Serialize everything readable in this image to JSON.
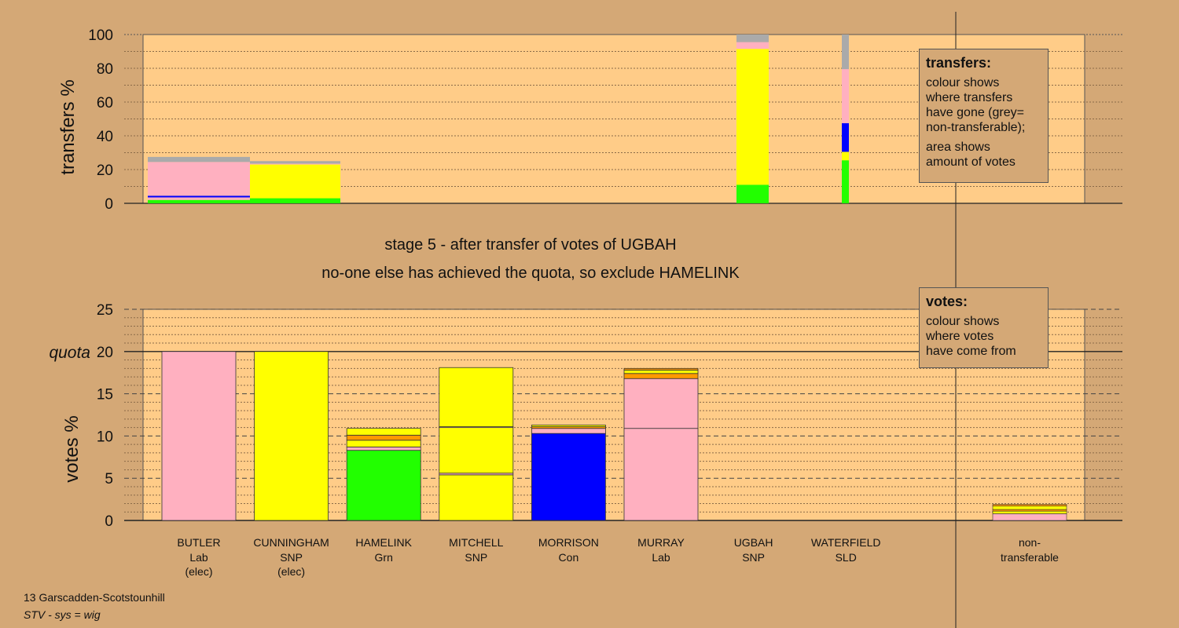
{
  "chart_data": [
    {
      "type": "bar",
      "stacked": true,
      "ylabel": "transfers %",
      "ylim": [
        0,
        100
      ],
      "yticks": [
        0,
        20,
        40,
        60,
        80,
        100
      ],
      "legend_title": "transfers:",
      "legend_lines1": [
        "colour shows",
        "where transfers",
        "have gone (grey=",
        "non-transferable);"
      ],
      "legend_lines2": [
        "area shows",
        "amount of votes"
      ],
      "legend_position": "right",
      "bars": [
        {
          "id": "butler",
          "segments": [
            {
              "color": "#22ff00",
              "value": 2
            },
            {
              "color": "#ffb0c0",
              "value": 1.5
            },
            {
              "color": "#0000ff",
              "value": 1
            },
            {
              "color": "#ffb0c0",
              "value": 20
            },
            {
              "color": "#aaaaaa",
              "value": 3
            }
          ]
        },
        {
          "id": "cunningham",
          "segments": [
            {
              "color": "#22ff00",
              "value": 3
            },
            {
              "color": "#ffff00",
              "value": 20
            },
            {
              "color": "#ffb0c0",
              "value": 0.5
            },
            {
              "color": "#aaaaaa",
              "value": 1.5
            }
          ]
        },
        {
          "id": "ugbah",
          "segments": [
            {
              "color": "#22ff00",
              "value": 11
            },
            {
              "color": "#ffff00",
              "value": 80.5
            },
            {
              "color": "#ffb0c0",
              "value": 4
            },
            {
              "color": "#aaaaaa",
              "value": 4.5
            }
          ]
        },
        {
          "id": "waterfield",
          "segments": [
            {
              "color": "#22ff00",
              "value": 25.5
            },
            {
              "color": "#ffff00",
              "value": 5
            },
            {
              "color": "#0000ff",
              "value": 17
            },
            {
              "color": "#ffb0c0",
              "value": 32
            },
            {
              "color": "#aaaaaa",
              "value": 20.5
            }
          ]
        }
      ]
    },
    {
      "type": "bar",
      "stacked": true,
      "title_line1": "stage 5 - after transfer of votes of UGBAH",
      "title_line2": "no-one else has achieved the quota, so exclude HAMELINK",
      "ylabel": "votes %",
      "ylim": [
        0,
        25
      ],
      "yticks": [
        0,
        5,
        10,
        15,
        20,
        25
      ],
      "quota_label": "quota",
      "quota": 20,
      "legend_title": "votes:",
      "legend_lines": [
        "colour shows",
        "where votes",
        "have come from"
      ],
      "legend_position": "right",
      "categories": [
        {
          "name": "BUTLER",
          "party": "Lab",
          "note": "(elec)"
        },
        {
          "name": "CUNNINGHAM",
          "party": "SNP",
          "note": "(elec)"
        },
        {
          "name": "HAMELINK",
          "party": "Grn",
          "note": ""
        },
        {
          "name": "MITCHELL",
          "party": "SNP",
          "note": ""
        },
        {
          "name": "MORRISON",
          "party": "Con",
          "note": ""
        },
        {
          "name": "MURRAY",
          "party": "Lab",
          "note": ""
        },
        {
          "name": "UGBAH",
          "party": "SNP",
          "note": ""
        },
        {
          "name": "WATERFIELD",
          "party": "SLD",
          "note": ""
        }
      ],
      "nontransferable_label": [
        "non-",
        "transferable"
      ],
      "bars": [
        {
          "segments": [
            {
              "color": "#ffb0c0",
              "value": 20
            }
          ]
        },
        {
          "segments": [
            {
              "color": "#ffff00",
              "value": 20
            }
          ]
        },
        {
          "segments": [
            {
              "color": "#22ff00",
              "value": 8.3
            },
            {
              "color": "#ffb0c0",
              "value": 0.4
            },
            {
              "color": "#ffff00",
              "value": 0.8
            },
            {
              "color": "#ff9900",
              "value": 0.6
            },
            {
              "color": "#ffff00",
              "value": 0.8
            }
          ]
        },
        {
          "segments": [
            {
              "color": "#ffff00",
              "value": 5.4
            },
            {
              "color": "#ffb0c0",
              "value": 0.2
            },
            {
              "color": "#ffff00",
              "value": 5.4
            },
            {
              "color": "#ffb0c0",
              "value": 0.1
            },
            {
              "color": "#ffff00",
              "value": 7.0
            }
          ]
        },
        {
          "segments": [
            {
              "color": "#0000ff",
              "value": 10.3
            },
            {
              "color": "#ffb0c0",
              "value": 0.6
            },
            {
              "color": "#ff9900",
              "value": 0.2
            },
            {
              "color": "#ffff00",
              "value": 0.2
            }
          ]
        },
        {
          "segments": [
            {
              "color": "#ffb0c0",
              "value": 10.9
            },
            {
              "color": "#ffb0c0",
              "value": 5.9
            },
            {
              "color": "#ff9900",
              "value": 0.6
            },
            {
              "color": "#ffff00",
              "value": 0.4
            },
            {
              "color": "#ff9900",
              "value": 0.2
            }
          ]
        },
        {
          "segments": []
        },
        {
          "segments": []
        }
      ],
      "nontransferable": {
        "segments": [
          {
            "color": "#ffb0c0",
            "value": 0.8
          },
          {
            "color": "#ffff00",
            "value": 0.3
          },
          {
            "color": "#ff9900",
            "value": 0.2
          },
          {
            "color": "#ffff00",
            "value": 0.4
          },
          {
            "color": "#ff9900",
            "value": 0.2
          }
        ]
      }
    }
  ],
  "footer": {
    "line1": "13 Garscadden-Scotstounhill",
    "line2": "STV - sys = wig"
  }
}
